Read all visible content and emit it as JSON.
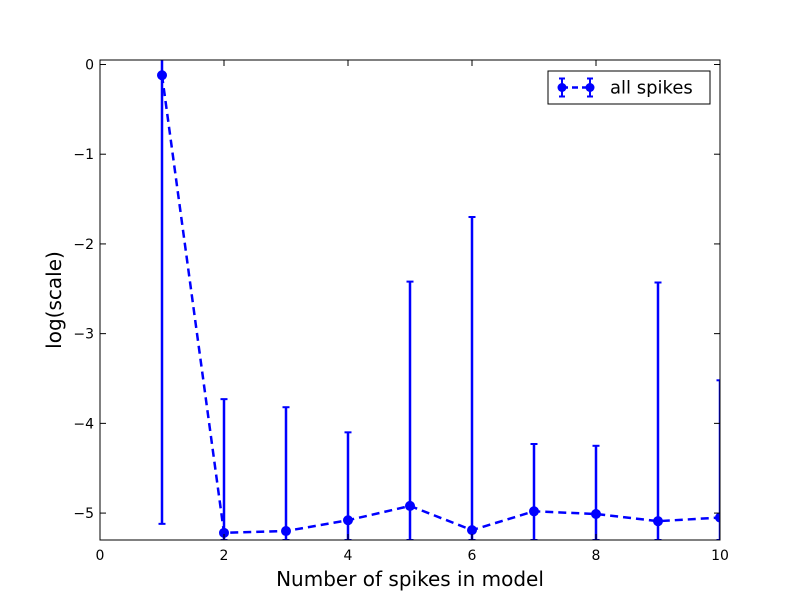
{
  "chart_data": {
    "type": "line",
    "title": "",
    "xlabel": "Number of spikes in model",
    "ylabel": "log(scale)",
    "xlim": [
      0,
      10
    ],
    "ylim": [
      -5.3,
      0.05
    ],
    "x_ticks": [
      0,
      2,
      4,
      6,
      8,
      10
    ],
    "x_tick_labels": [
      "0",
      "2",
      "4",
      "6",
      "8",
      "10"
    ],
    "y_ticks": [
      0,
      -1,
      -2,
      -3,
      -4,
      -5
    ],
    "y_tick_labels": [
      "0",
      "−1",
      "−2",
      "−3",
      "−4",
      "−5"
    ],
    "grid": false,
    "legend_position": "top-right",
    "series": [
      {
        "name": "all spikes",
        "color": "#0000ff",
        "line_style": "dashed",
        "marker": "circle",
        "x": [
          1,
          2,
          3,
          4,
          5,
          6,
          7,
          8,
          9,
          10
        ],
        "y": [
          -0.12,
          -5.22,
          -5.2,
          -5.08,
          -4.92,
          -5.19,
          -4.98,
          -5.01,
          -5.09,
          -5.05
        ],
        "error_upper": [
          0.06,
          -3.73,
          -3.82,
          -4.1,
          -2.42,
          -1.7,
          -4.23,
          -4.25,
          -2.43,
          -3.52
        ],
        "error_lower": [
          -5.12,
          -5.3,
          -5.3,
          -5.3,
          -5.3,
          -5.3,
          -5.3,
          -5.3,
          -5.3,
          -5.3
        ]
      }
    ]
  }
}
